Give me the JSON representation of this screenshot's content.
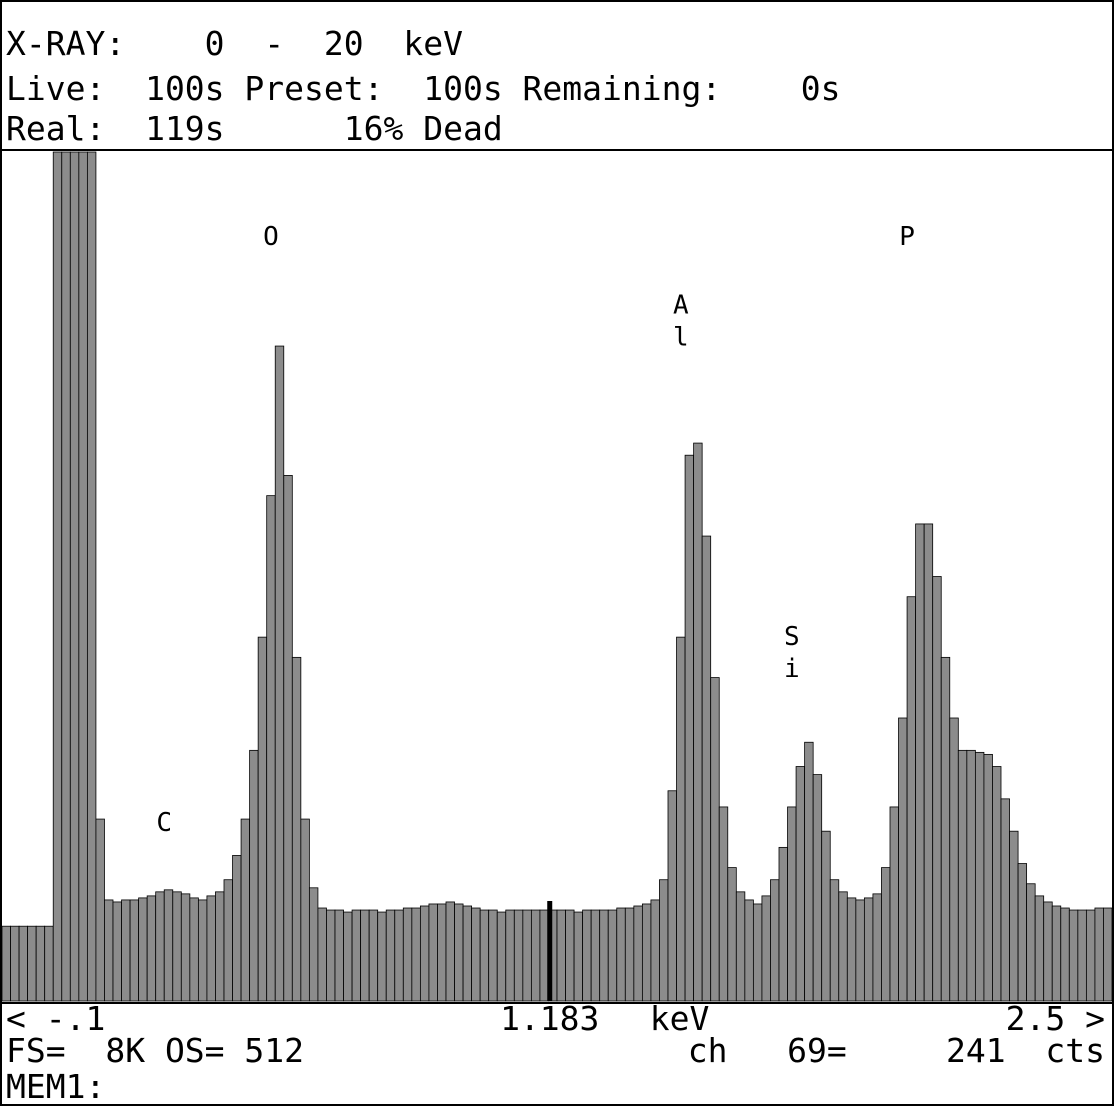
{
  "chart_data": {
    "type": "histogram",
    "header": [
      "X-RAY:    0  -  20  keV",
      "Live:  100s Preset:  100s Remaining:    0s",
      "Real:  119s      16% Dead"
    ],
    "footer": [
      "FS=  8K OS= 512",
      "ch   69=     241  cts",
      "MEM1:"
    ],
    "x_unit": "keV",
    "cursor": {
      "value": 1.183,
      "label": "1.183"
    },
    "xlim": [
      -0.1,
      2.5
    ],
    "xticks": [
      {
        "value": -0.1,
        "label": "< -.1"
      },
      {
        "value": 2.5,
        "label": "2.5 >"
      }
    ],
    "ylim": [
      0,
      2100
    ],
    "color": "#8c8c8c",
    "bins": [
      -0.1,
      -0.08,
      -0.06,
      -0.04,
      -0.02,
      0,
      0.02,
      0.04,
      0.06,
      0.08,
      0.1,
      0.12,
      0.14,
      0.16,
      0.18,
      0.2,
      0.22,
      0.24,
      0.26,
      0.28,
      0.3,
      0.32,
      0.34,
      0.36,
      0.38,
      0.4,
      0.42,
      0.44,
      0.46,
      0.48,
      0.5,
      0.52,
      0.54,
      0.56,
      0.58,
      0.6,
      0.62,
      0.64,
      0.66,
      0.68,
      0.7,
      0.72,
      0.74,
      0.76,
      0.78,
      0.8,
      0.82,
      0.84,
      0.86,
      0.88,
      0.9,
      0.92,
      0.94,
      0.96,
      0.98,
      1,
      1.02,
      1.04,
      1.06,
      1.08,
      1.1,
      1.12,
      1.14,
      1.16,
      1.18,
      1.2,
      1.22,
      1.24,
      1.26,
      1.28,
      1.3,
      1.32,
      1.34,
      1.36,
      1.38,
      1.4,
      1.42,
      1.44,
      1.46,
      1.48,
      1.5,
      1.52,
      1.54,
      1.56,
      1.58,
      1.6,
      1.62,
      1.64,
      1.66,
      1.68,
      1.7,
      1.72,
      1.74,
      1.76,
      1.78,
      1.8,
      1.82,
      1.84,
      1.86,
      1.88,
      1.9,
      1.92,
      1.94,
      1.96,
      1.98,
      2,
      2.02,
      2.04,
      2.06,
      2.08,
      2.1,
      2.12,
      2.14,
      2.16,
      2.18,
      2.2,
      2.22,
      2.24,
      2.26,
      2.28,
      2.3,
      2.32,
      2.34,
      2.36,
      2.38,
      2.4,
      2.42,
      2.44,
      2.46,
      2.48,
      2.5
    ],
    "values": [
      185,
      185,
      185,
      185,
      185,
      185,
      2100,
      2100,
      2100,
      2100,
      2100,
      450,
      250,
      245,
      250,
      250,
      255,
      260,
      270,
      275,
      270,
      265,
      255,
      250,
      260,
      270,
      300,
      360,
      450,
      620,
      900,
      1250,
      1620,
      1300,
      850,
      450,
      280,
      230,
      225,
      225,
      220,
      225,
      225,
      225,
      220,
      225,
      225,
      230,
      230,
      235,
      240,
      240,
      245,
      240,
      235,
      230,
      225,
      225,
      220,
      225,
      225,
      225,
      225,
      225,
      225,
      225,
      225,
      220,
      225,
      225,
      225,
      225,
      230,
      230,
      235,
      240,
      250,
      300,
      520,
      900,
      1350,
      1380,
      1150,
      800,
      480,
      330,
      270,
      250,
      240,
      260,
      300,
      380,
      480,
      580,
      640,
      560,
      420,
      300,
      270,
      255,
      250,
      255,
      265,
      330,
      480,
      700,
      1000,
      1180,
      1180,
      1050,
      850,
      700,
      620,
      620,
      615,
      610,
      580,
      500,
      420,
      340,
      290,
      260,
      245,
      235,
      230,
      225,
      225,
      225,
      230,
      230
    ],
    "annotations": [
      {
        "text": "C",
        "x": 0.28,
        "y": 420
      },
      {
        "text": "O",
        "x": 0.53,
        "y": 1870
      },
      {
        "text": "Al",
        "x": 1.49,
        "y": 1700
      },
      {
        "text": "Si",
        "x": 1.75,
        "y": 880
      },
      {
        "text": "P",
        "x": 2.02,
        "y": 1870
      }
    ]
  }
}
